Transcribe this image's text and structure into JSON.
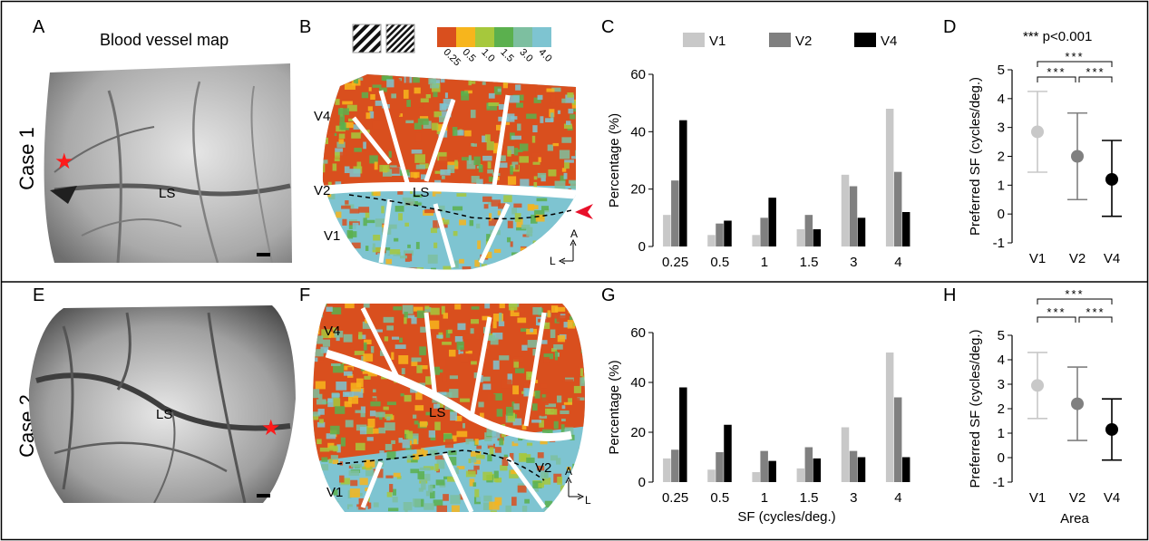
{
  "panels": {
    "A": {
      "letter": "A",
      "title": "Blood vessel map",
      "region_label": "LS"
    },
    "B": {
      "letter": "B",
      "areas": [
        "V4",
        "V2",
        "V1"
      ],
      "region_label": "LS",
      "colorbar": {
        "labels": [
          "0.25",
          "0.5",
          "1.0",
          "1.5",
          "3.0",
          "4.0"
        ],
        "colors": [
          "#d94f1e",
          "#f7b51c",
          "#a6c83c",
          "#5bb04e",
          "#7dbfa0",
          "#7ec4d1"
        ]
      },
      "compass": {
        "up": "A",
        "side": "L"
      }
    },
    "C": {
      "letter": "C"
    },
    "D": {
      "letter": "D",
      "sig_note": "*** p<0.001"
    },
    "E": {
      "letter": "E",
      "region_label": "LS"
    },
    "F": {
      "letter": "F",
      "areas": [
        "V4",
        "V1",
        "V2"
      ],
      "region_label": "LS",
      "compass": {
        "up": "A",
        "side": "L"
      }
    },
    "G": {
      "letter": "G"
    },
    "H": {
      "letter": "H"
    }
  },
  "row_labels": [
    "Case 1",
    "Case 2"
  ],
  "sig_stars": "***",
  "colors": {
    "V1": "#c8c8c8",
    "V2": "#808080",
    "V4": "#000000",
    "star": "#ff1a1a"
  },
  "chart_data": [
    {
      "panel": "C",
      "type": "bar",
      "categories": [
        "0.25",
        "0.5",
        "1",
        "1.5",
        "3",
        "4"
      ],
      "series": [
        {
          "name": "V1",
          "values": [
            11,
            4,
            4,
            6,
            25,
            48
          ]
        },
        {
          "name": "V2",
          "values": [
            23,
            8,
            10,
            11,
            21,
            26
          ]
        },
        {
          "name": "V4",
          "values": [
            44,
            9,
            17,
            6,
            10,
            12
          ]
        }
      ],
      "ylabel": "Percentage (%)",
      "xlabel": "",
      "ylim": [
        0,
        60
      ],
      "yticks": [
        0,
        20,
        40,
        60
      ],
      "legend": "top"
    },
    {
      "panel": "D",
      "type": "scatter",
      "categories": [
        "V1",
        "V2",
        "V4"
      ],
      "means": [
        2.85,
        2.0,
        1.2
      ],
      "lower": [
        1.45,
        0.5,
        -0.08
      ],
      "upper": [
        4.25,
        3.5,
        2.55
      ],
      "ylabel": "Preferred SF (cycles/deg.)",
      "xlabel": "",
      "ylim": [
        -1,
        5
      ],
      "yticks": [
        -1,
        0,
        1,
        2,
        3,
        4,
        5
      ]
    },
    {
      "panel": "G",
      "type": "bar",
      "categories": [
        "0.25",
        "0.5",
        "1",
        "1.5",
        "3",
        "4"
      ],
      "series": [
        {
          "name": "V1",
          "values": [
            9.5,
            5,
            4,
            5.5,
            22,
            52
          ]
        },
        {
          "name": "V2",
          "values": [
            13,
            12,
            12.5,
            14,
            12.5,
            34
          ]
        },
        {
          "name": "V4",
          "values": [
            38,
            23,
            8.5,
            9.5,
            10,
            10
          ]
        }
      ],
      "ylabel": "Percentage (%)",
      "xlabel": "SF (cycles/deg.)",
      "ylim": [
        0,
        60
      ],
      "yticks": [
        0,
        20,
        40,
        60
      ]
    },
    {
      "panel": "H",
      "type": "scatter",
      "categories": [
        "V1",
        "V2",
        "V4"
      ],
      "means": [
        2.95,
        2.2,
        1.15
      ],
      "lower": [
        1.6,
        0.7,
        -0.1
      ],
      "upper": [
        4.3,
        3.7,
        2.4
      ],
      "ylabel": "Preferred SF (cycles/deg.)",
      "xlabel": "Area",
      "ylim": [
        -1,
        5
      ],
      "yticks": [
        -1,
        0,
        1,
        2,
        3,
        4,
        5
      ]
    }
  ]
}
